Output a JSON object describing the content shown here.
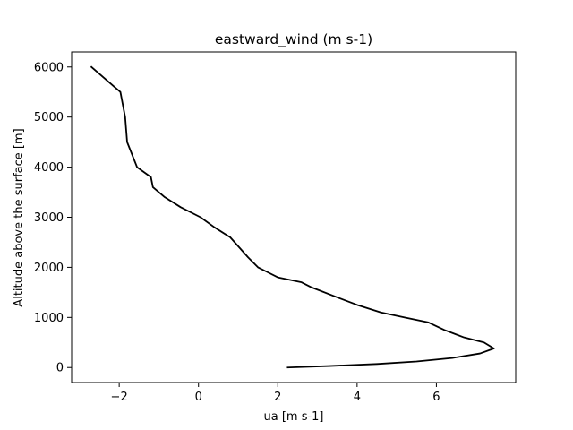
{
  "chart_data": {
    "type": "line",
    "title": "eastward_wind (m s-1)",
    "xlabel": "ua [m s-1]",
    "ylabel": "Altitude above the surface [m]",
    "xlim": [
      -3.2,
      8.0
    ],
    "ylim": [
      -300,
      6300
    ],
    "xticks": [
      -2,
      0,
      2,
      4,
      6
    ],
    "xtick_labels": [
      "−2",
      "0",
      "2",
      "4",
      "6"
    ],
    "yticks": [
      0,
      1000,
      2000,
      3000,
      4000,
      5000,
      6000
    ],
    "ytick_labels": [
      "0",
      "1000",
      "2000",
      "3000",
      "4000",
      "5000",
      "6000"
    ],
    "grid": false,
    "series": [
      {
        "color": "#000000",
        "points": [
          [
            2.25,
            0
          ],
          [
            3.3,
            30
          ],
          [
            4.5,
            70
          ],
          [
            5.5,
            120
          ],
          [
            6.4,
            190
          ],
          [
            7.1,
            280
          ],
          [
            7.45,
            380
          ],
          [
            7.2,
            500
          ],
          [
            6.7,
            600
          ],
          [
            6.2,
            750
          ],
          [
            5.8,
            900
          ],
          [
            5.2,
            1000
          ],
          [
            4.6,
            1100
          ],
          [
            4.0,
            1250
          ],
          [
            3.5,
            1400
          ],
          [
            2.85,
            1600
          ],
          [
            2.6,
            1700
          ],
          [
            2.0,
            1800
          ],
          [
            1.75,
            1900
          ],
          [
            1.5,
            2000
          ],
          [
            1.25,
            2200
          ],
          [
            0.8,
            2600
          ],
          [
            0.4,
            2800
          ],
          [
            0.05,
            3000
          ],
          [
            -0.45,
            3200
          ],
          [
            -0.85,
            3400
          ],
          [
            -1.15,
            3600
          ],
          [
            -1.2,
            3800
          ],
          [
            -1.55,
            4000
          ],
          [
            -1.8,
            4500
          ],
          [
            -1.85,
            5000
          ],
          [
            -1.97,
            5500
          ],
          [
            -2.7,
            6000
          ]
        ]
      }
    ]
  }
}
